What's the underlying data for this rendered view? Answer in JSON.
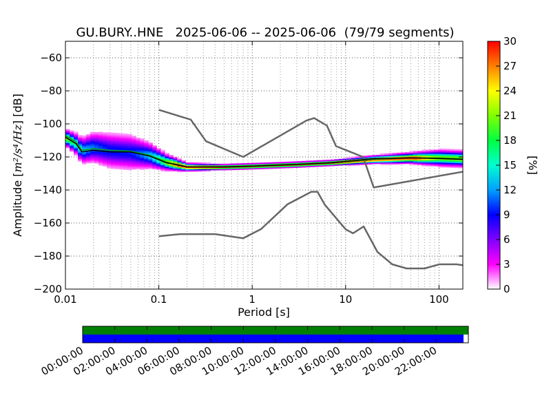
{
  "chart_data": [
    {
      "type": "heatmap",
      "subtype": "probabilistic-power-spectral-density",
      "title": "GU.BURY..HNE   2025-06-06 -- 2025-06-06  (79/79 segments)",
      "xlabel": "Period [s]",
      "ylabel_prefix": "Amplitude [",
      "ylabel_suffix": "] [dB]",
      "ylabel_math": "m²/s⁴/Hz",
      "xscale": "log",
      "xlim": [
        0.01,
        180
      ],
      "ylim": [
        -200,
        -50
      ],
      "xticks": [
        0.01,
        0.1,
        1,
        10,
        100
      ],
      "xtick_labels": [
        "0.01",
        "0.1",
        "1",
        "10",
        "100"
      ],
      "yticks": [
        -200,
        -180,
        -160,
        -140,
        -120,
        -100,
        -80,
        -60
      ],
      "ytick_labels": [
        "−200",
        "−180",
        "−160",
        "−140",
        "−120",
        "−100",
        "−80",
        "−60"
      ],
      "grid": "dotted",
      "colorbar": {
        "label": "[%]",
        "range": [
          0,
          30
        ],
        "ticks": [
          0,
          3,
          6,
          9,
          12,
          15,
          18,
          21,
          24,
          27,
          30
        ],
        "colormap": [
          "#ffffff",
          "#ff00ff",
          "#8000ff",
          "#0000ff",
          "#00a0ff",
          "#00ffd0",
          "#00ff40",
          "#80ff00",
          "#ffff00",
          "#ff8000",
          "#ff0000"
        ]
      },
      "density_band": [
        {
          "period": 0.01,
          "center": -108,
          "spread": 3
        },
        {
          "period": 0.013,
          "center": -112,
          "spread": 4
        },
        {
          "period": 0.015,
          "center": -116,
          "spread": 5
        },
        {
          "period": 0.02,
          "center": -114,
          "spread": 6
        },
        {
          "period": 0.03,
          "center": -116,
          "spread": 7
        },
        {
          "period": 0.05,
          "center": -117,
          "spread": 7
        },
        {
          "period": 0.08,
          "center": -119,
          "spread": 5
        },
        {
          "period": 0.12,
          "center": -123,
          "spread": 3
        },
        {
          "period": 0.2,
          "center": -126,
          "spread": 1.5
        },
        {
          "period": 0.5,
          "center": -126,
          "spread": 1
        },
        {
          "period": 1,
          "center": -125.5,
          "spread": 1
        },
        {
          "period": 3,
          "center": -124.5,
          "spread": 1
        },
        {
          "period": 7,
          "center": -123.5,
          "spread": 1
        },
        {
          "period": 20,
          "center": -121.5,
          "spread": 1.5
        },
        {
          "period": 50,
          "center": -120.5,
          "spread": 2
        },
        {
          "period": 100,
          "center": -120.5,
          "spread": 3
        },
        {
          "period": 180,
          "center": -121,
          "spread": 3
        }
      ],
      "series": [
        {
          "style": "reference-high-noise-model",
          "color": "#666666",
          "x": [
            0.1,
            0.22,
            0.32,
            0.8,
            3.8,
            4.6,
            6.3,
            7.9,
            15.4,
            20,
            354.8
          ],
          "y": [
            -91.5,
            -97.4,
            -110.5,
            -120,
            -98,
            -96.5,
            -101,
            -113.5,
            -120,
            -138.5,
            -126
          ]
        },
        {
          "style": "reference-low-noise-model",
          "color": "#666666",
          "x": [
            0.1,
            0.17,
            0.4,
            0.8,
            1.24,
            2.4,
            4.3,
            5,
            6,
            10,
            12,
            15.6,
            21.9,
            31.6,
            45,
            70,
            101,
            154,
            180
          ],
          "y": [
            -168,
            -166.7,
            -166.7,
            -169.2,
            -163.7,
            -148.6,
            -141.1,
            -141.1,
            -149,
            -163.8,
            -166.2,
            -162.1,
            -177.5,
            -185,
            -187.5,
            -187.5,
            -185,
            -185,
            -185.5
          ]
        },
        {
          "style": "mean",
          "color": "#00aa00",
          "x": [
            0.01,
            0.013,
            0.015,
            0.02,
            0.03,
            0.05,
            0.08,
            0.12,
            0.2,
            0.5,
            1,
            3,
            7,
            20,
            50,
            100,
            180
          ],
          "y": [
            -107,
            -111,
            -116,
            -115,
            -116,
            -116.5,
            -119,
            -123,
            -126,
            -126,
            -125.5,
            -124.5,
            -123.5,
            -121.5,
            -120.5,
            -120.5,
            -121
          ]
        },
        {
          "style": "mode",
          "color": "#000000",
          "x": [
            0.01,
            0.013,
            0.015,
            0.02,
            0.03,
            0.05,
            0.08,
            0.12,
            0.2,
            0.5,
            1,
            3,
            7,
            20,
            50,
            100,
            180
          ],
          "y": [
            -108,
            -112,
            -117,
            -116,
            -117,
            -117,
            -119.5,
            -123.5,
            -126,
            -126,
            -125.5,
            -124.5,
            -123.5,
            -121,
            -120.5,
            -121,
            -121.5
          ]
        }
      ]
    },
    {
      "type": "timeline",
      "subtype": "data-coverage",
      "tick_labels": [
        "00:00:00",
        "02:00:00",
        "04:00:00",
        "06:00:00",
        "08:00:00",
        "10:00:00",
        "12:00:00",
        "14:00:00",
        "16:00:00",
        "18:00:00",
        "20:00:00",
        "22:00:00"
      ],
      "tick_hours": [
        0,
        2,
        4,
        6,
        8,
        10,
        12,
        14,
        16,
        18,
        20,
        22
      ],
      "range_hours": [
        0,
        24
      ],
      "rows": [
        {
          "color": "#008000",
          "start_hour": 0,
          "end_hour": 24
        },
        {
          "color": "#0000ff",
          "start_hour": 0,
          "end_hour": 23.7
        }
      ]
    }
  ]
}
